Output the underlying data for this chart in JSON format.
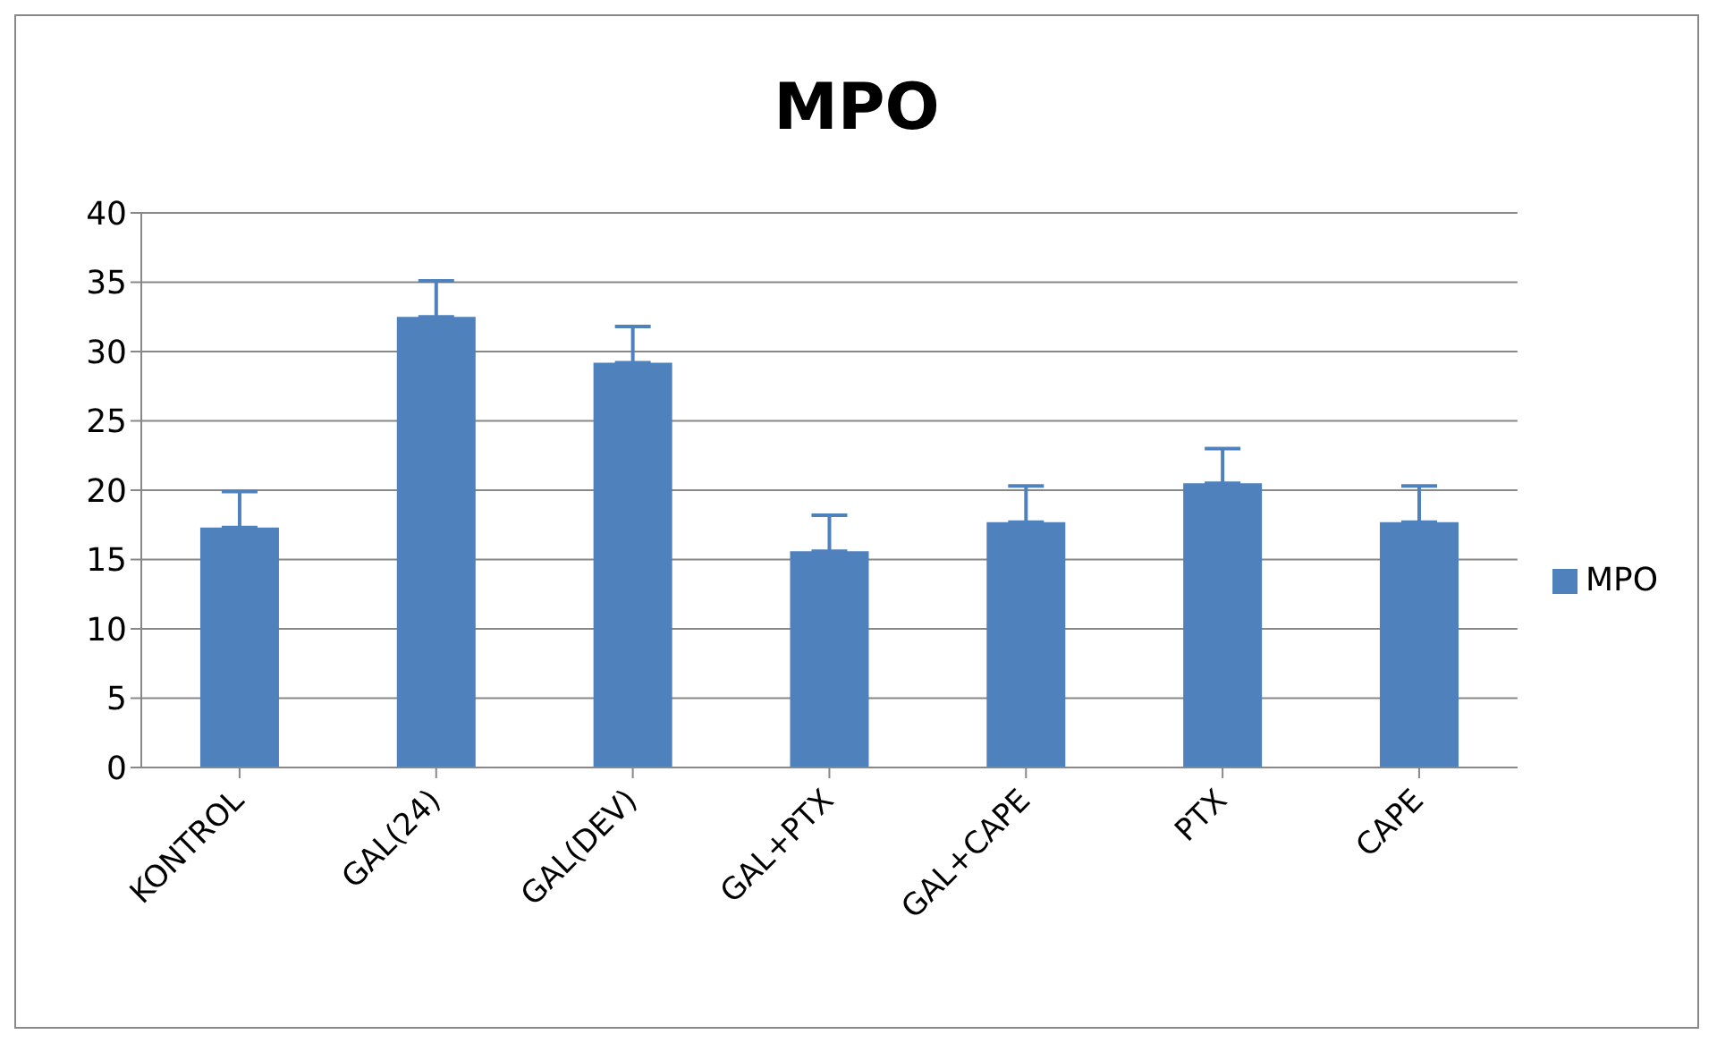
{
  "chart_data": {
    "type": "bar",
    "title": "MPO",
    "categories": [
      "KONTROL",
      "GAL(24)",
      "GAL(DEV)",
      "GAL+PTX",
      "GAL+CAPE",
      "PTX",
      "CAPE"
    ],
    "series": [
      {
        "name": "MPO",
        "color": "#4f81bd",
        "values": [
          17.3,
          32.5,
          29.2,
          15.6,
          17.7,
          20.5,
          17.7
        ],
        "errors": [
          [
            17.3,
            19.9
          ],
          [
            32.5,
            35.1
          ],
          [
            29.2,
            31.8
          ],
          [
            15.6,
            18.2
          ],
          [
            17.7,
            20.3
          ],
          [
            20.5,
            23.0
          ],
          [
            17.7,
            20.3
          ]
        ]
      }
    ],
    "ylim": [
      0,
      40
    ],
    "yticks": [
      0,
      5,
      10,
      15,
      20,
      25,
      30,
      35,
      40
    ],
    "grid": "y",
    "legend": "right"
  }
}
